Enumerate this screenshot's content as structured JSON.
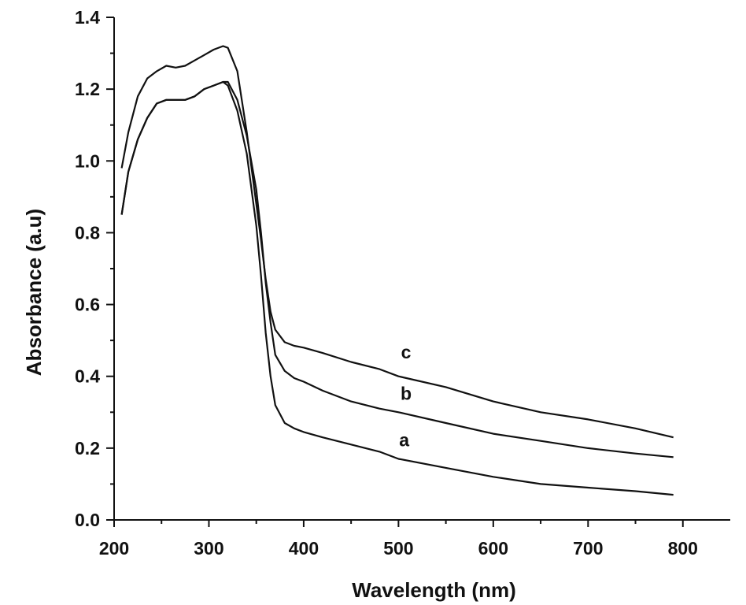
{
  "chart_data": {
    "type": "line",
    "title": "",
    "xlabel": "Wavelength (nm)",
    "ylabel": "Absorbance (a.u)",
    "xlim": [
      200,
      850
    ],
    "ylim": [
      0.0,
      1.4
    ],
    "x_ticks": [
      "200",
      "300",
      "400",
      "500",
      "600",
      "700",
      "800"
    ],
    "y_ticks": [
      "0.0",
      "0.2",
      "0.4",
      "0.6",
      "0.8",
      "1.0",
      "1.2",
      "1.4"
    ],
    "grid": false,
    "legend": "none",
    "series": [
      {
        "name": "a",
        "color": "#111111",
        "points": [
          [
            208,
            0.85
          ],
          [
            215,
            0.97
          ],
          [
            225,
            1.06
          ],
          [
            235,
            1.12
          ],
          [
            245,
            1.16
          ],
          [
            255,
            1.17
          ],
          [
            265,
            1.17
          ],
          [
            275,
            1.17
          ],
          [
            285,
            1.18
          ],
          [
            295,
            1.2
          ],
          [
            305,
            1.21
          ],
          [
            315,
            1.22
          ],
          [
            320,
            1.21
          ],
          [
            330,
            1.14
          ],
          [
            340,
            1.02
          ],
          [
            350,
            0.82
          ],
          [
            355,
            0.68
          ],
          [
            360,
            0.52
          ],
          [
            365,
            0.4
          ],
          [
            370,
            0.32
          ],
          [
            380,
            0.27
          ],
          [
            390,
            0.255
          ],
          [
            400,
            0.245
          ],
          [
            420,
            0.23
          ],
          [
            450,
            0.21
          ],
          [
            480,
            0.19
          ],
          [
            500,
            0.17
          ],
          [
            550,
            0.145
          ],
          [
            600,
            0.12
          ],
          [
            650,
            0.1
          ],
          [
            700,
            0.09
          ],
          [
            750,
            0.08
          ],
          [
            790,
            0.07
          ]
        ]
      },
      {
        "name": "b",
        "color": "#111111",
        "points": [
          [
            208,
            0.85
          ],
          [
            215,
            0.97
          ],
          [
            225,
            1.06
          ],
          [
            235,
            1.12
          ],
          [
            245,
            1.16
          ],
          [
            255,
            1.17
          ],
          [
            265,
            1.17
          ],
          [
            275,
            1.17
          ],
          [
            285,
            1.18
          ],
          [
            295,
            1.2
          ],
          [
            305,
            1.21
          ],
          [
            315,
            1.22
          ],
          [
            320,
            1.22
          ],
          [
            330,
            1.17
          ],
          [
            340,
            1.07
          ],
          [
            350,
            0.92
          ],
          [
            355,
            0.8
          ],
          [
            360,
            0.66
          ],
          [
            365,
            0.55
          ],
          [
            370,
            0.46
          ],
          [
            380,
            0.415
          ],
          [
            390,
            0.395
          ],
          [
            400,
            0.385
          ],
          [
            420,
            0.36
          ],
          [
            450,
            0.33
          ],
          [
            480,
            0.31
          ],
          [
            500,
            0.3
          ],
          [
            550,
            0.27
          ],
          [
            600,
            0.24
          ],
          [
            650,
            0.22
          ],
          [
            700,
            0.2
          ],
          [
            750,
            0.185
          ],
          [
            790,
            0.175
          ]
        ]
      },
      {
        "name": "c",
        "color": "#111111",
        "points": [
          [
            208,
            0.98
          ],
          [
            215,
            1.08
          ],
          [
            225,
            1.18
          ],
          [
            235,
            1.23
          ],
          [
            245,
            1.25
          ],
          [
            255,
            1.265
          ],
          [
            265,
            1.26
          ],
          [
            275,
            1.265
          ],
          [
            285,
            1.28
          ],
          [
            295,
            1.295
          ],
          [
            305,
            1.31
          ],
          [
            315,
            1.32
          ],
          [
            320,
            1.315
          ],
          [
            330,
            1.25
          ],
          [
            340,
            1.08
          ],
          [
            350,
            0.88
          ],
          [
            355,
            0.78
          ],
          [
            360,
            0.67
          ],
          [
            365,
            0.58
          ],
          [
            370,
            0.53
          ],
          [
            380,
            0.495
          ],
          [
            390,
            0.485
          ],
          [
            400,
            0.48
          ],
          [
            420,
            0.465
          ],
          [
            450,
            0.44
          ],
          [
            480,
            0.42
          ],
          [
            500,
            0.4
          ],
          [
            550,
            0.37
          ],
          [
            600,
            0.33
          ],
          [
            650,
            0.3
          ],
          [
            700,
            0.28
          ],
          [
            750,
            0.255
          ],
          [
            790,
            0.23
          ]
        ]
      }
    ],
    "annotations": [
      {
        "text": "a",
        "x": 506,
        "y": 0.205
      },
      {
        "text": "b",
        "x": 508,
        "y": 0.335
      },
      {
        "text": "c",
        "x": 508,
        "y": 0.45
      }
    ]
  }
}
